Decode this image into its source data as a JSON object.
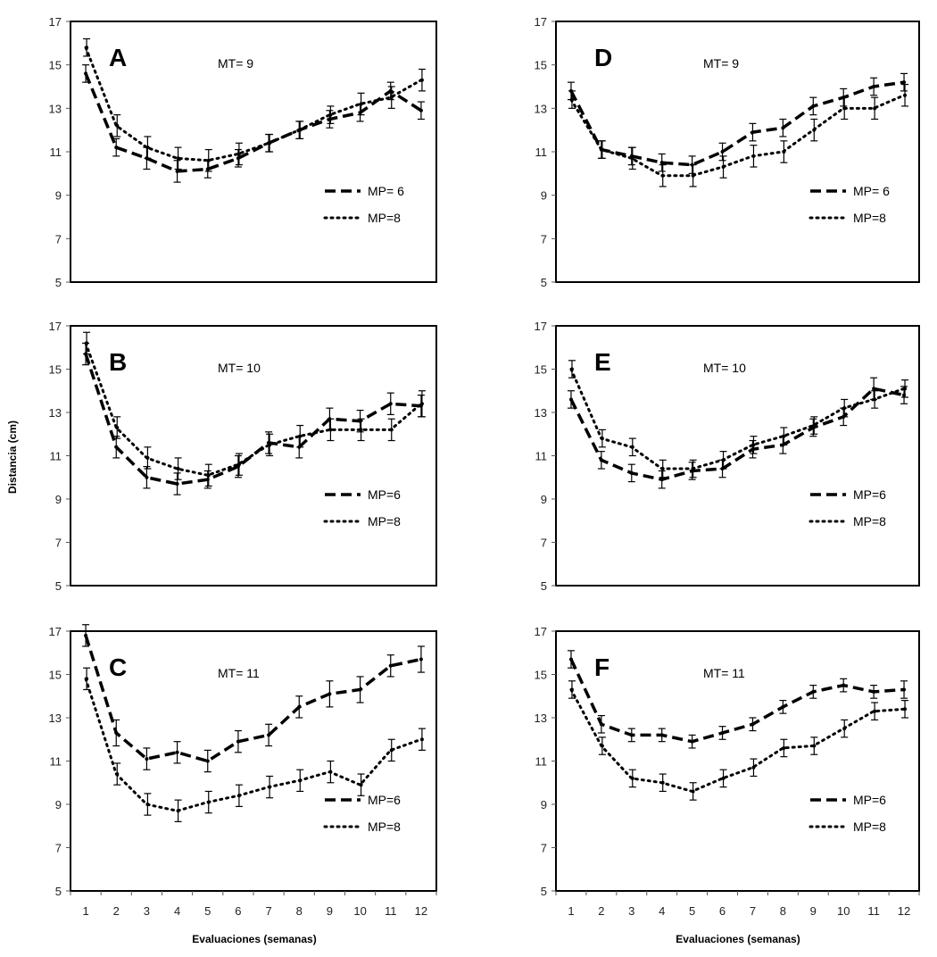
{
  "figure": {
    "xlabel": "Evaluaciones  (semanas)",
    "ylabel": "Distancia  (cm)"
  },
  "chart_data": [
    {
      "type": "line",
      "panel": "A",
      "annotation": "MT= 9",
      "x": [
        1,
        2,
        3,
        4,
        5,
        6,
        7,
        8,
        9,
        10,
        11,
        12
      ],
      "xlim": [
        0.5,
        12.5
      ],
      "ylim": [
        5,
        17
      ],
      "yticks": [
        5,
        7,
        9,
        11,
        13,
        15,
        17
      ],
      "legend_position": "lower-right",
      "series": [
        {
          "name": "MP= 6",
          "style": "dashed",
          "values": [
            14.6,
            11.2,
            10.7,
            10.1,
            10.2,
            10.7,
            11.4,
            12.0,
            12.5,
            12.8,
            13.8,
            12.9
          ],
          "error": [
            0.4,
            0.4,
            0.5,
            0.5,
            0.4,
            0.4,
            0.4,
            0.4,
            0.4,
            0.4,
            0.4,
            0.4
          ]
        },
        {
          "name": "MP=8",
          "style": "dotted",
          "values": [
            15.8,
            12.2,
            11.2,
            10.7,
            10.6,
            10.9,
            11.4,
            12.0,
            12.7,
            13.2,
            13.5,
            14.3
          ],
          "error": [
            0.4,
            0.5,
            0.5,
            0.5,
            0.5,
            0.5,
            0.4,
            0.4,
            0.4,
            0.5,
            0.5,
            0.5
          ]
        }
      ]
    },
    {
      "type": "line",
      "panel": "B",
      "annotation": "MT= 10",
      "x": [
        1,
        2,
        3,
        4,
        5,
        6,
        7,
        8,
        9,
        10,
        11,
        12
      ],
      "xlim": [
        0.5,
        12.5
      ],
      "ylim": [
        5,
        17
      ],
      "yticks": [
        5,
        7,
        9,
        11,
        13,
        15,
        17
      ],
      "legend_position": "lower-right",
      "series": [
        {
          "name": "MP=6",
          "style": "dashed",
          "values": [
            15.7,
            11.4,
            10.0,
            9.7,
            9.9,
            10.5,
            11.6,
            11.4,
            12.7,
            12.6,
            13.4,
            13.3
          ],
          "error": [
            0.5,
            0.5,
            0.5,
            0.5,
            0.4,
            0.5,
            0.5,
            0.5,
            0.5,
            0.5,
            0.5,
            0.5
          ]
        },
        {
          "name": "MP=8",
          "style": "dotted",
          "values": [
            16.2,
            12.3,
            10.9,
            10.4,
            10.1,
            10.6,
            11.5,
            11.9,
            12.2,
            12.2,
            12.2,
            13.4
          ],
          "error": [
            0.5,
            0.5,
            0.5,
            0.5,
            0.5,
            0.5,
            0.5,
            0.5,
            0.5,
            0.5,
            0.5,
            0.6
          ]
        }
      ]
    },
    {
      "type": "line",
      "panel": "C",
      "annotation": "MT= 11",
      "x": [
        1,
        2,
        3,
        4,
        5,
        6,
        7,
        8,
        9,
        10,
        11,
        12
      ],
      "xlim": [
        0.5,
        12.5
      ],
      "ylim": [
        5,
        17
      ],
      "yticks": [
        5,
        7,
        9,
        11,
        13,
        15,
        17
      ],
      "xticks": [
        "1",
        "2",
        "3",
        "4",
        "5",
        "6",
        "7",
        "8",
        "9",
        "10",
        "11",
        "12"
      ],
      "legend_position": "lower-right",
      "series": [
        {
          "name": "MP=6",
          "style": "dashed",
          "values": [
            16.8,
            12.3,
            11.1,
            11.4,
            11.0,
            11.9,
            12.2,
            13.5,
            14.1,
            14.3,
            15.4,
            15.7
          ],
          "error": [
            0.5,
            0.6,
            0.5,
            0.5,
            0.5,
            0.5,
            0.5,
            0.5,
            0.6,
            0.6,
            0.5,
            0.6
          ]
        },
        {
          "name": "MP=8",
          "style": "dotted",
          "values": [
            14.8,
            10.4,
            9.0,
            8.7,
            9.1,
            9.4,
            9.8,
            10.1,
            10.5,
            9.9,
            11.5,
            12.0
          ],
          "error": [
            0.5,
            0.5,
            0.5,
            0.5,
            0.5,
            0.5,
            0.5,
            0.5,
            0.5,
            0.5,
            0.5,
            0.5
          ]
        }
      ]
    },
    {
      "type": "line",
      "panel": "D",
      "annotation": "MT= 9",
      "x": [
        1,
        2,
        3,
        4,
        5,
        6,
        7,
        8,
        9,
        10,
        11,
        12
      ],
      "xlim": [
        0.5,
        12.5
      ],
      "ylim": [
        5,
        17
      ],
      "yticks": [
        5,
        7,
        9,
        11,
        13,
        15,
        17
      ],
      "legend_position": "lower-right",
      "series": [
        {
          "name": "MP= 6",
          "style": "dashed",
          "values": [
            13.8,
            11.1,
            10.8,
            10.5,
            10.4,
            11.0,
            11.9,
            12.1,
            13.1,
            13.5,
            14.0,
            14.2
          ],
          "error": [
            0.4,
            0.4,
            0.4,
            0.4,
            0.4,
            0.4,
            0.4,
            0.4,
            0.4,
            0.4,
            0.4,
            0.4
          ]
        },
        {
          "name": "MP=8",
          "style": "dotted",
          "values": [
            13.4,
            11.1,
            10.7,
            9.9,
            9.9,
            10.3,
            10.8,
            11.0,
            12.0,
            13.0,
            13.0,
            13.6
          ],
          "error": [
            0.4,
            0.4,
            0.5,
            0.5,
            0.5,
            0.5,
            0.5,
            0.5,
            0.5,
            0.5,
            0.5,
            0.5
          ]
        }
      ]
    },
    {
      "type": "line",
      "panel": "E",
      "annotation": "MT= 10",
      "x": [
        1,
        2,
        3,
        4,
        5,
        6,
        7,
        8,
        9,
        10,
        11,
        12
      ],
      "xlim": [
        0.5,
        12.5
      ],
      "ylim": [
        5,
        17
      ],
      "yticks": [
        5,
        7,
        9,
        11,
        13,
        15,
        17
      ],
      "legend_position": "lower-right",
      "series": [
        {
          "name": "MP=6",
          "style": "dashed",
          "values": [
            13.6,
            10.8,
            10.2,
            9.9,
            10.3,
            10.4,
            11.3,
            11.5,
            12.3,
            12.8,
            14.1,
            13.8
          ],
          "error": [
            0.4,
            0.4,
            0.4,
            0.4,
            0.4,
            0.4,
            0.4,
            0.4,
            0.4,
            0.4,
            0.5,
            0.4
          ]
        },
        {
          "name": "MP=8",
          "style": "dotted",
          "values": [
            15.0,
            11.8,
            11.4,
            10.4,
            10.4,
            10.8,
            11.5,
            11.9,
            12.4,
            13.2,
            13.6,
            14.1
          ],
          "error": [
            0.4,
            0.4,
            0.4,
            0.4,
            0.4,
            0.4,
            0.4,
            0.4,
            0.4,
            0.4,
            0.4,
            0.4
          ]
        }
      ]
    },
    {
      "type": "line",
      "panel": "F",
      "annotation": "MT= 11",
      "x": [
        1,
        2,
        3,
        4,
        5,
        6,
        7,
        8,
        9,
        10,
        11,
        12
      ],
      "xlim": [
        0.5,
        12.5
      ],
      "ylim": [
        5,
        17
      ],
      "yticks": [
        5,
        7,
        9,
        11,
        13,
        15,
        17
      ],
      "xticks": [
        "1",
        "2",
        "3",
        "4",
        "5",
        "6",
        "7",
        "8",
        "9",
        "10",
        "11",
        "12"
      ],
      "legend_position": "lower-right",
      "series": [
        {
          "name": "MP=6",
          "style": "dashed",
          "values": [
            15.7,
            12.7,
            12.2,
            12.2,
            11.9,
            12.3,
            12.7,
            13.5,
            14.2,
            14.5,
            14.2,
            14.3
          ],
          "error": [
            0.4,
            0.4,
            0.3,
            0.3,
            0.3,
            0.3,
            0.3,
            0.3,
            0.3,
            0.3,
            0.3,
            0.4
          ]
        },
        {
          "name": "MP=8",
          "style": "dotted",
          "values": [
            14.3,
            11.7,
            10.2,
            10.0,
            9.6,
            10.2,
            10.7,
            11.6,
            11.7,
            12.5,
            13.3,
            13.4
          ],
          "error": [
            0.4,
            0.4,
            0.4,
            0.4,
            0.4,
            0.4,
            0.4,
            0.4,
            0.4,
            0.4,
            0.4,
            0.4
          ]
        }
      ]
    }
  ]
}
